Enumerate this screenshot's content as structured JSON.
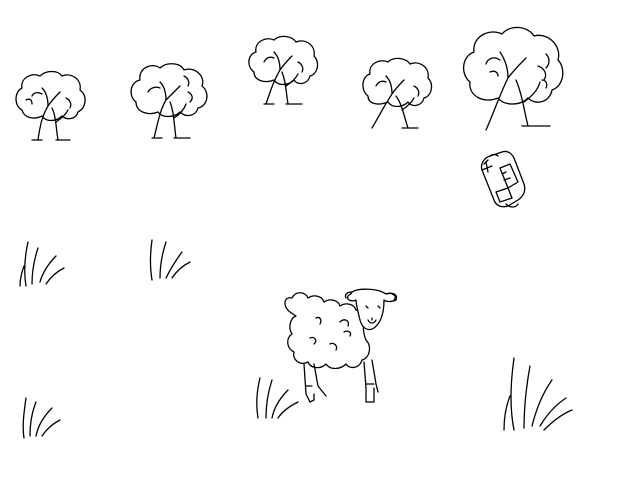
{
  "scene": {
    "background_color": "#ffffff",
    "line_color": "#000000"
  },
  "sprites": {
    "trees": [
      "tree-icon",
      "tree-icon",
      "tree-icon",
      "tree-icon",
      "tree-icon"
    ],
    "car": "car-icon",
    "sheep": "sheep-icon",
    "grass": [
      "grass-tuft-icon",
      "grass-tuft-icon",
      "grass-tuft-icon",
      "grass-tuft-icon",
      "grass-tuft-icon"
    ]
  }
}
